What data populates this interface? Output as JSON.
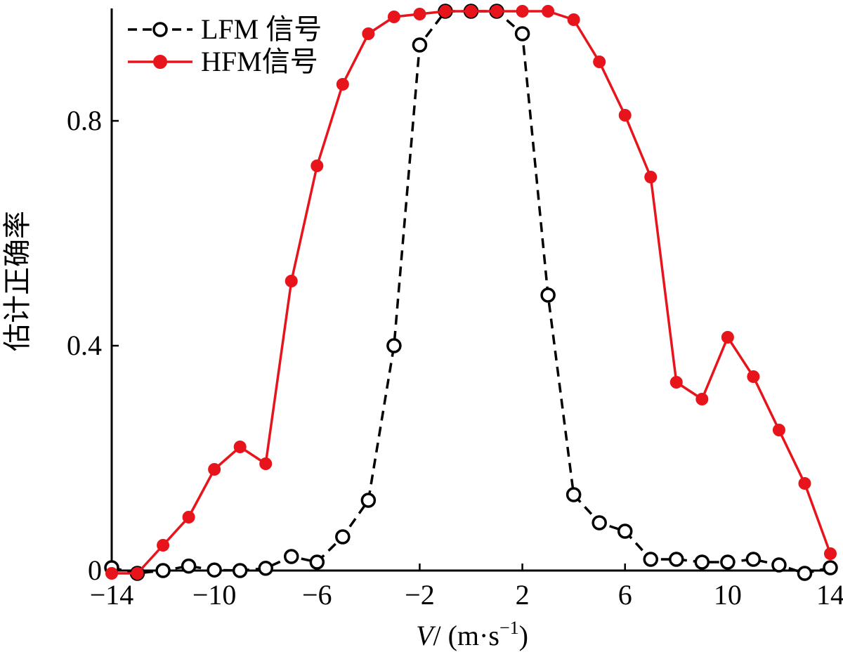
{
  "chart_data": {
    "type": "line",
    "title": "",
    "xlabel": "V/(m·s⁻¹)",
    "xlabel_var": "V",
    "xlabel_unit": "/ (m·s",
    "xlabel_exp": "−1",
    "xlabel_close": ")",
    "ylabel": "估计正确率",
    "xlim": [
      -14,
      14
    ],
    "ylim": [
      0,
      1.0
    ],
    "xticks": [
      -14,
      -10,
      -6,
      -2,
      2,
      6,
      10,
      14
    ],
    "xtick_labels": [
      "−14",
      "−10",
      "−6",
      "−2",
      "2",
      "6",
      "10",
      "14"
    ],
    "yticks": [
      0,
      0.4,
      0.8
    ],
    "ytick_labels": [
      "0",
      "0.4",
      "0.8"
    ],
    "grid": false,
    "legend_position": "top-left",
    "x": [
      -14,
      -13,
      -12,
      -11,
      -10,
      -9,
      -8,
      -7,
      -6,
      -5,
      -4,
      -3,
      -2,
      -1,
      0,
      1,
      2,
      3,
      4,
      5,
      6,
      7,
      8,
      9,
      10,
      11,
      12,
      13,
      14
    ],
    "series": [
      {
        "name": "LFM 信号",
        "color": "#000000",
        "line_style": "dashed",
        "marker": "open-circle",
        "values": [
          0.005,
          -0.005,
          0.0,
          0.008,
          0.001,
          0.0,
          0.004,
          0.025,
          0.015,
          0.06,
          0.125,
          0.4,
          0.935,
          0.995,
          0.995,
          0.995,
          0.955,
          0.49,
          0.135,
          0.085,
          0.07,
          0.02,
          0.02,
          0.015,
          0.015,
          0.02,
          0.01,
          -0.005,
          0.005
        ]
      },
      {
        "name": "HFM信号",
        "color": "#e8141b",
        "line_style": "solid",
        "marker": "filled-circle",
        "values": [
          -0.005,
          -0.005,
          0.045,
          0.095,
          0.18,
          0.22,
          0.19,
          0.515,
          0.72,
          0.865,
          0.955,
          0.985,
          0.99,
          0.995,
          0.995,
          0.995,
          0.995,
          0.995,
          0.98,
          0.905,
          0.81,
          0.7,
          0.335,
          0.305,
          0.415,
          0.345,
          0.25,
          0.155,
          0.03
        ]
      }
    ]
  }
}
